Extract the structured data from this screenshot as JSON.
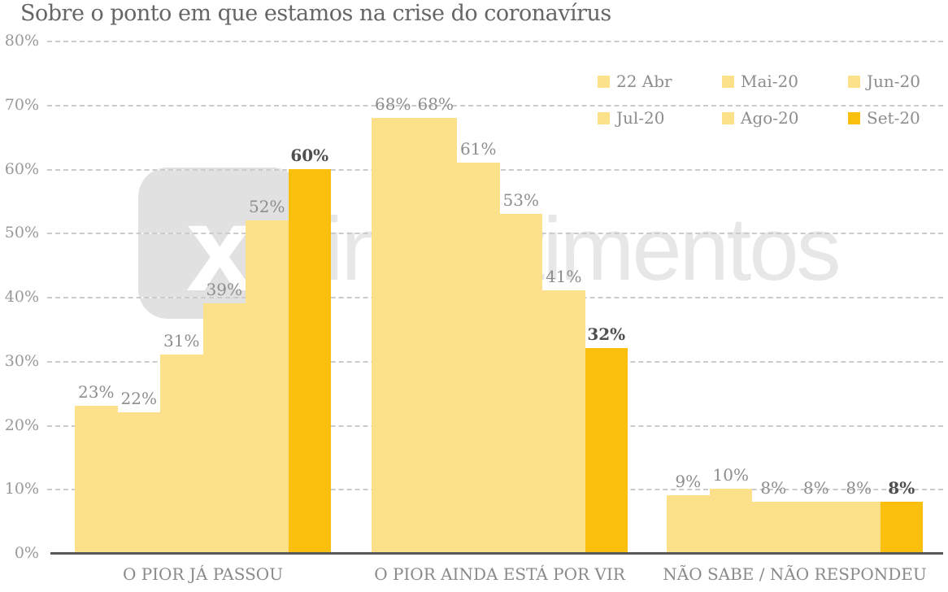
{
  "watermark": {
    "symbol": "x",
    "text": "investimentos"
  },
  "colors": {
    "bar_default": "#FCE08A",
    "bar_accent": "#FBC00D",
    "grid": "#CBCBCB",
    "axis": "#58595B",
    "title_text": "#666666",
    "tick_text": "#999999",
    "value_label": "#8D8D8D",
    "value_label_accent": "#4F4F4F",
    "category_text": "#8A8A8A",
    "legend_text": "#8D8D8D",
    "watermark_box": "#E1E1E1",
    "watermark_text": "#E7E7E7"
  },
  "chart_data": {
    "type": "bar",
    "title": "Sobre o ponto em que estamos na crise do coronavírus",
    "unit": "%",
    "categories": [
      "O PIOR JÁ PASSOU",
      "O PIOR AINDA ESTÁ POR VIR",
      "NÃO SABE / NÃO RESPONDEU"
    ],
    "series": [
      {
        "name": "22 Abr",
        "values": [
          23,
          68,
          9
        ]
      },
      {
        "name": "Mai-20",
        "values": [
          22,
          68,
          10
        ]
      },
      {
        "name": "Jun-20",
        "values": [
          31,
          61,
          8
        ]
      },
      {
        "name": "Jul-20",
        "values": [
          39,
          53,
          8
        ]
      },
      {
        "name": "Ago-20",
        "values": [
          52,
          41,
          8
        ]
      },
      {
        "name": "Set-20",
        "values": [
          60,
          32,
          8
        ]
      }
    ],
    "highlighted_series": "Set-20",
    "ylim": [
      0,
      80
    ],
    "ytick_step": 10,
    "grid": "horizontal-dashed",
    "legend_position": "top-right",
    "value_labels": "above-bars"
  }
}
